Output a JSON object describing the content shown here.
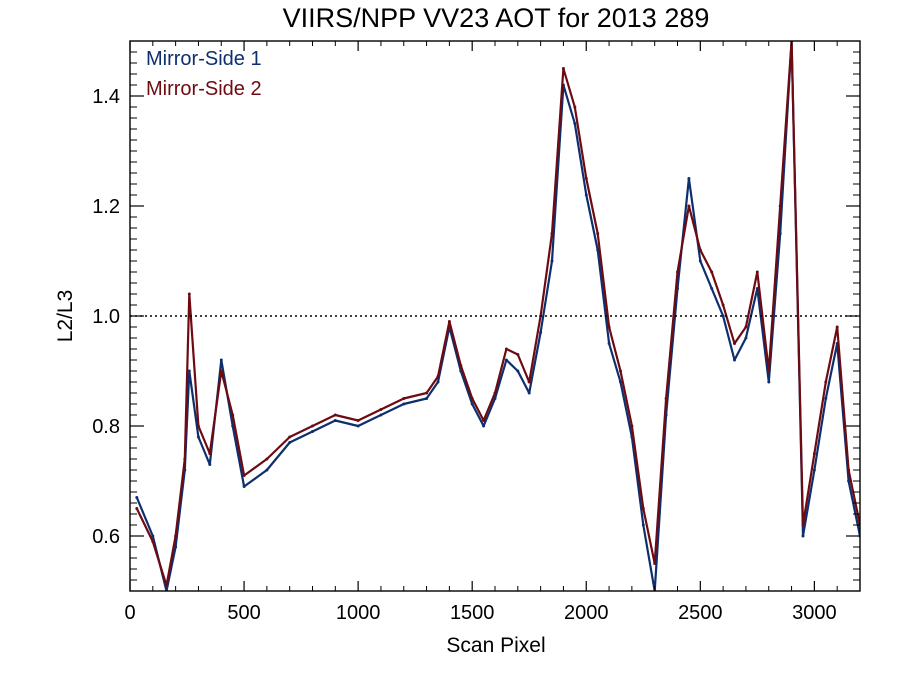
{
  "chart_data": {
    "type": "line",
    "title": "VIIRS/NPP VV23 AOT for 2013 289",
    "xlabel": "Scan Pixel",
    "ylabel": "L2/L3",
    "xlim": [
      0,
      3200
    ],
    "ylim": [
      0.5,
      1.5
    ],
    "xticks": [
      0,
      500,
      1000,
      1500,
      2000,
      2500,
      3000
    ],
    "yticks": [
      0.6,
      0.8,
      1.0,
      1.2,
      1.4
    ],
    "xtick_labels": [
      "0",
      "500",
      "1000",
      "1500",
      "2000",
      "2500",
      "3000"
    ],
    "ytick_labels": [
      "0.6",
      "0.8",
      "1.0",
      "1.2",
      "1.4"
    ],
    "reference_line": {
      "y": 1.0,
      "style": "dotted"
    },
    "legend_position": "top-left",
    "grid": false,
    "series": [
      {
        "name": "Mirror-Side 1",
        "color": "#0d2f6e",
        "x": [
          30,
          100,
          160,
          200,
          240,
          260,
          300,
          350,
          400,
          450,
          500,
          600,
          700,
          800,
          900,
          1000,
          1100,
          1200,
          1300,
          1350,
          1400,
          1450,
          1500,
          1550,
          1600,
          1650,
          1700,
          1750,
          1800,
          1850,
          1900,
          1950,
          2000,
          2050,
          2100,
          2150,
          2200,
          2250,
          2300,
          2350,
          2400,
          2450,
          2500,
          2550,
          2600,
          2650,
          2700,
          2750,
          2800,
          2850,
          2900,
          2950,
          3000,
          3050,
          3100,
          3150,
          3200
        ],
        "values": [
          0.67,
          0.6,
          0.5,
          0.58,
          0.72,
          0.9,
          0.78,
          0.73,
          0.92,
          0.8,
          0.69,
          0.72,
          0.77,
          0.79,
          0.81,
          0.8,
          0.82,
          0.84,
          0.85,
          0.88,
          0.98,
          0.9,
          0.84,
          0.8,
          0.85,
          0.92,
          0.9,
          0.86,
          0.97,
          1.1,
          1.42,
          1.35,
          1.22,
          1.12,
          0.95,
          0.88,
          0.78,
          0.62,
          0.5,
          0.82,
          1.05,
          1.25,
          1.1,
          1.05,
          1.0,
          0.92,
          0.96,
          1.05,
          0.88,
          1.15,
          1.5,
          0.6,
          0.72,
          0.85,
          0.95,
          0.7,
          0.6
        ]
      },
      {
        "name": "Mirror-Side 2",
        "color": "#6e0a12",
        "x": [
          30,
          100,
          160,
          200,
          240,
          260,
          300,
          350,
          400,
          450,
          500,
          600,
          700,
          800,
          900,
          1000,
          1100,
          1200,
          1300,
          1350,
          1400,
          1450,
          1500,
          1550,
          1600,
          1650,
          1700,
          1750,
          1800,
          1850,
          1900,
          1950,
          2000,
          2050,
          2100,
          2150,
          2200,
          2250,
          2300,
          2350,
          2400,
          2450,
          2500,
          2550,
          2600,
          2650,
          2700,
          2750,
          2800,
          2850,
          2900,
          2950,
          3000,
          3050,
          3100,
          3150,
          3200
        ],
        "values": [
          0.65,
          0.59,
          0.51,
          0.6,
          0.74,
          1.04,
          0.8,
          0.75,
          0.9,
          0.82,
          0.71,
          0.74,
          0.78,
          0.8,
          0.82,
          0.81,
          0.83,
          0.85,
          0.86,
          0.89,
          0.99,
          0.91,
          0.85,
          0.81,
          0.86,
          0.94,
          0.93,
          0.88,
          1.0,
          1.15,
          1.45,
          1.38,
          1.25,
          1.15,
          0.98,
          0.9,
          0.8,
          0.65,
          0.55,
          0.85,
          1.08,
          1.2,
          1.12,
          1.08,
          1.02,
          0.95,
          0.98,
          1.08,
          0.9,
          1.2,
          1.5,
          0.62,
          0.75,
          0.88,
          0.98,
          0.72,
          0.62
        ]
      }
    ]
  }
}
